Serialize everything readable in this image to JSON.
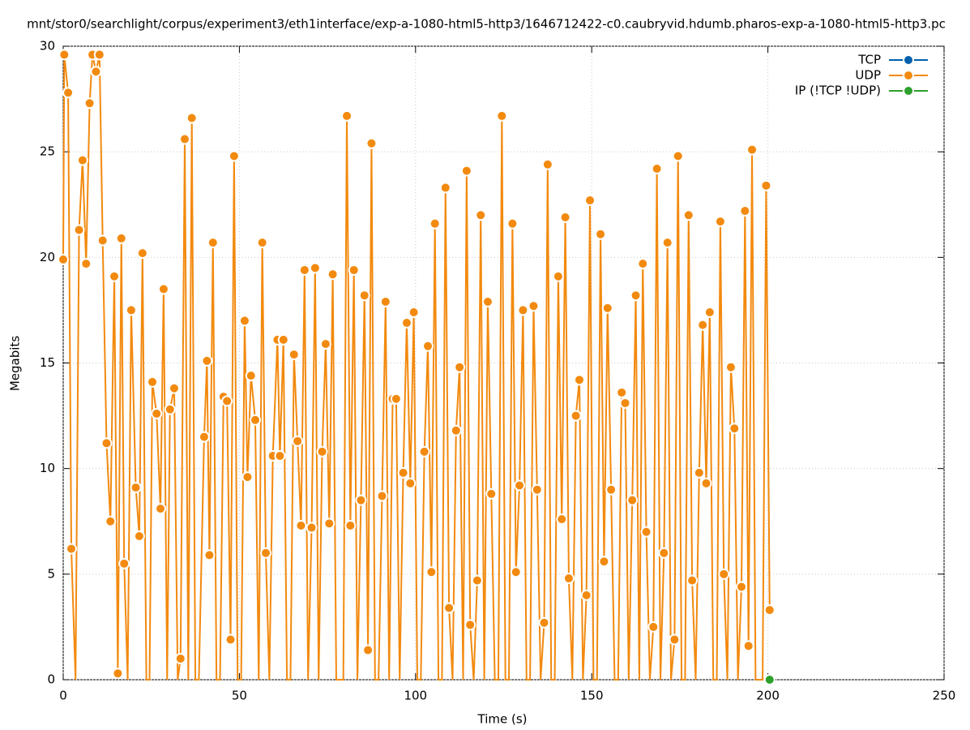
{
  "chart_data": {
    "type": "line",
    "title": "mnt/stor0/searchlight/corpus/experiment3/eth1interface/exp-a-1080-html5-http3/1646712422-c0.caubryvid.hdumb.pharos-exp-a-1080-html5-http3.pc",
    "xlabel": "Time (s)",
    "ylabel": "Megabits",
    "xlim": [
      0,
      250
    ],
    "xticks": [
      0,
      50,
      100,
      150,
      200,
      250
    ],
    "ylim": [
      0,
      30
    ],
    "yticks": [
      0,
      5,
      10,
      15,
      20,
      25,
      30
    ],
    "grid": true,
    "legend": "top-right",
    "series": [
      {
        "name": "TCP",
        "color": "#0060ad",
        "x": [],
        "values": []
      },
      {
        "name": "UDP",
        "color": "#f28a0f",
        "x": [
          0,
          0.3,
          1.4,
          2.3,
          3.5,
          4.5,
          5.5,
          6.5,
          7.5,
          8.3,
          9.3,
          10.3,
          11.2,
          12.3,
          13.4,
          14.5,
          15.5,
          16.5,
          17.3,
          18.3,
          19.3,
          20.6,
          21.6,
          22.5,
          23.6,
          24.5,
          25.3,
          26.5,
          27.6,
          28.5,
          29.5,
          30.3,
          31.5,
          32.5,
          33.3,
          34.5,
          35.5,
          36.5,
          37.5,
          38.5,
          40.0,
          40.8,
          41.5,
          42.5,
          43.5,
          44.5,
          45.5,
          46.5,
          47.5,
          48.5,
          49.5,
          50.5,
          51.5,
          52.3,
          53.3,
          54.5,
          55.5,
          56.5,
          57.5,
          58.5,
          59.5,
          60.8,
          61.5,
          62.5,
          63.5,
          64.5,
          65.5,
          66.5,
          67.5,
          68.5,
          69.5,
          70.5,
          71.5,
          72.5,
          73.5,
          74.5,
          75.5,
          76.5,
          77.5,
          78.5,
          79.5,
          80.5,
          81.5,
          82.5,
          83.5,
          84.5,
          85.5,
          86.5,
          87.5,
          88.5,
          89.5,
          90.5,
          91.5,
          92.5,
          93.5,
          94.5,
          95.5,
          96.5,
          97.5,
          98.5,
          99.5,
          100.5,
          101.5,
          102.5,
          103.5,
          104.5,
          105.5,
          106.5,
          107.5,
          108.5,
          109.5,
          110.5,
          111.5,
          112.5,
          113.5,
          114.5,
          115.5,
          116.5,
          117.5,
          118.5,
          119.5,
          120.5,
          121.5,
          122.5,
          123.5,
          124.5,
          125.5,
          126.5,
          127.5,
          128.5,
          129.5,
          130.5,
          131.5,
          132.5,
          133.5,
          134.5,
          135.5,
          136.5,
          137.5,
          138.5,
          139.5,
          140.5,
          141.5,
          142.5,
          143.5,
          144.5,
          145.5,
          146.5,
          147.5,
          148.5,
          149.5,
          150.5,
          151.5,
          152.5,
          153.5,
          154.5,
          155.5,
          156.5,
          157.5,
          158.5,
          159.5,
          160.5,
          161.5,
          162.5,
          163.5,
          164.5,
          165.5,
          166.5,
          167.5,
          168.5,
          169.5,
          170.5,
          171.5,
          172.5,
          173.5,
          174.5,
          175.5,
          176.5,
          177.5,
          178.5,
          179.5,
          180.5,
          181.5,
          182.5,
          183.5,
          184.5,
          185.5,
          186.5,
          187.5,
          188.5,
          189.5,
          190.5,
          191.5,
          192.5,
          193.5,
          194.5,
          195.5,
          196.5,
          197.5,
          198.5,
          199.5,
          200.5
        ],
        "values": [
          19.9,
          29.6,
          27.8,
          6.2,
          0,
          21.3,
          24.6,
          19.7,
          27.3,
          29.6,
          28.8,
          29.6,
          20.8,
          11.2,
          7.5,
          19.1,
          0.3,
          20.9,
          5.5,
          0,
          17.5,
          9.1,
          6.8,
          20.2,
          0,
          0,
          14.1,
          12.6,
          8.1,
          18.5,
          0,
          12.8,
          13.8,
          0,
          1.0,
          25.6,
          0,
          26.6,
          0,
          0,
          11.5,
          15.1,
          5.9,
          20.7,
          0,
          0,
          13.4,
          13.2,
          1.9,
          24.8,
          0,
          0,
          17.0,
          9.6,
          14.4,
          12.3,
          0,
          20.7,
          6.0,
          0,
          10.6,
          16.1,
          10.6,
          16.1,
          0,
          0,
          15.4,
          11.3,
          7.3,
          19.4,
          0,
          7.2,
          19.5,
          0,
          10.8,
          15.9,
          7.4,
          19.2,
          0,
          0,
          0,
          26.7,
          7.3,
          19.4,
          0,
          8.5,
          18.2,
          1.4,
          25.4,
          0,
          0,
          8.7,
          17.9,
          0,
          13.3,
          13.3,
          0,
          9.8,
          16.9,
          9.3,
          17.4,
          0,
          0,
          10.8,
          15.8,
          5.1,
          21.6,
          0,
          0,
          23.3,
          3.4,
          0,
          11.8,
          14.8,
          0,
          24.1,
          2.6,
          0,
          4.7,
          22.0,
          0,
          17.9,
          8.8,
          0,
          0,
          26.7,
          0,
          0,
          21.6,
          5.1,
          9.2,
          17.5,
          0,
          0,
          17.7,
          9.0,
          0,
          2.7,
          24.4,
          0,
          0,
          19.1,
          7.6,
          21.9,
          4.8,
          0,
          12.5,
          14.2,
          0,
          4.0,
          22.7,
          0,
          0,
          21.1,
          5.6,
          17.6,
          9.0,
          0,
          0,
          13.6,
          13.1,
          0,
          8.5,
          18.2,
          0,
          19.7,
          7.0,
          0,
          2.5,
          24.2,
          0,
          6.0,
          20.7,
          0,
          1.9,
          24.8,
          0,
          0,
          22.0,
          4.7,
          0,
          9.8,
          16.8,
          9.3,
          17.4,
          0,
          0,
          21.7,
          5.0,
          0,
          14.8,
          11.9,
          0,
          4.4,
          22.2,
          1.6,
          25.1,
          0,
          0,
          0,
          23.4,
          3.3
        ]
      },
      {
        "name": "IP (!TCP  !UDP)",
        "color": "#2ca02c",
        "x": [
          200.5
        ],
        "values": [
          0
        ]
      }
    ]
  }
}
